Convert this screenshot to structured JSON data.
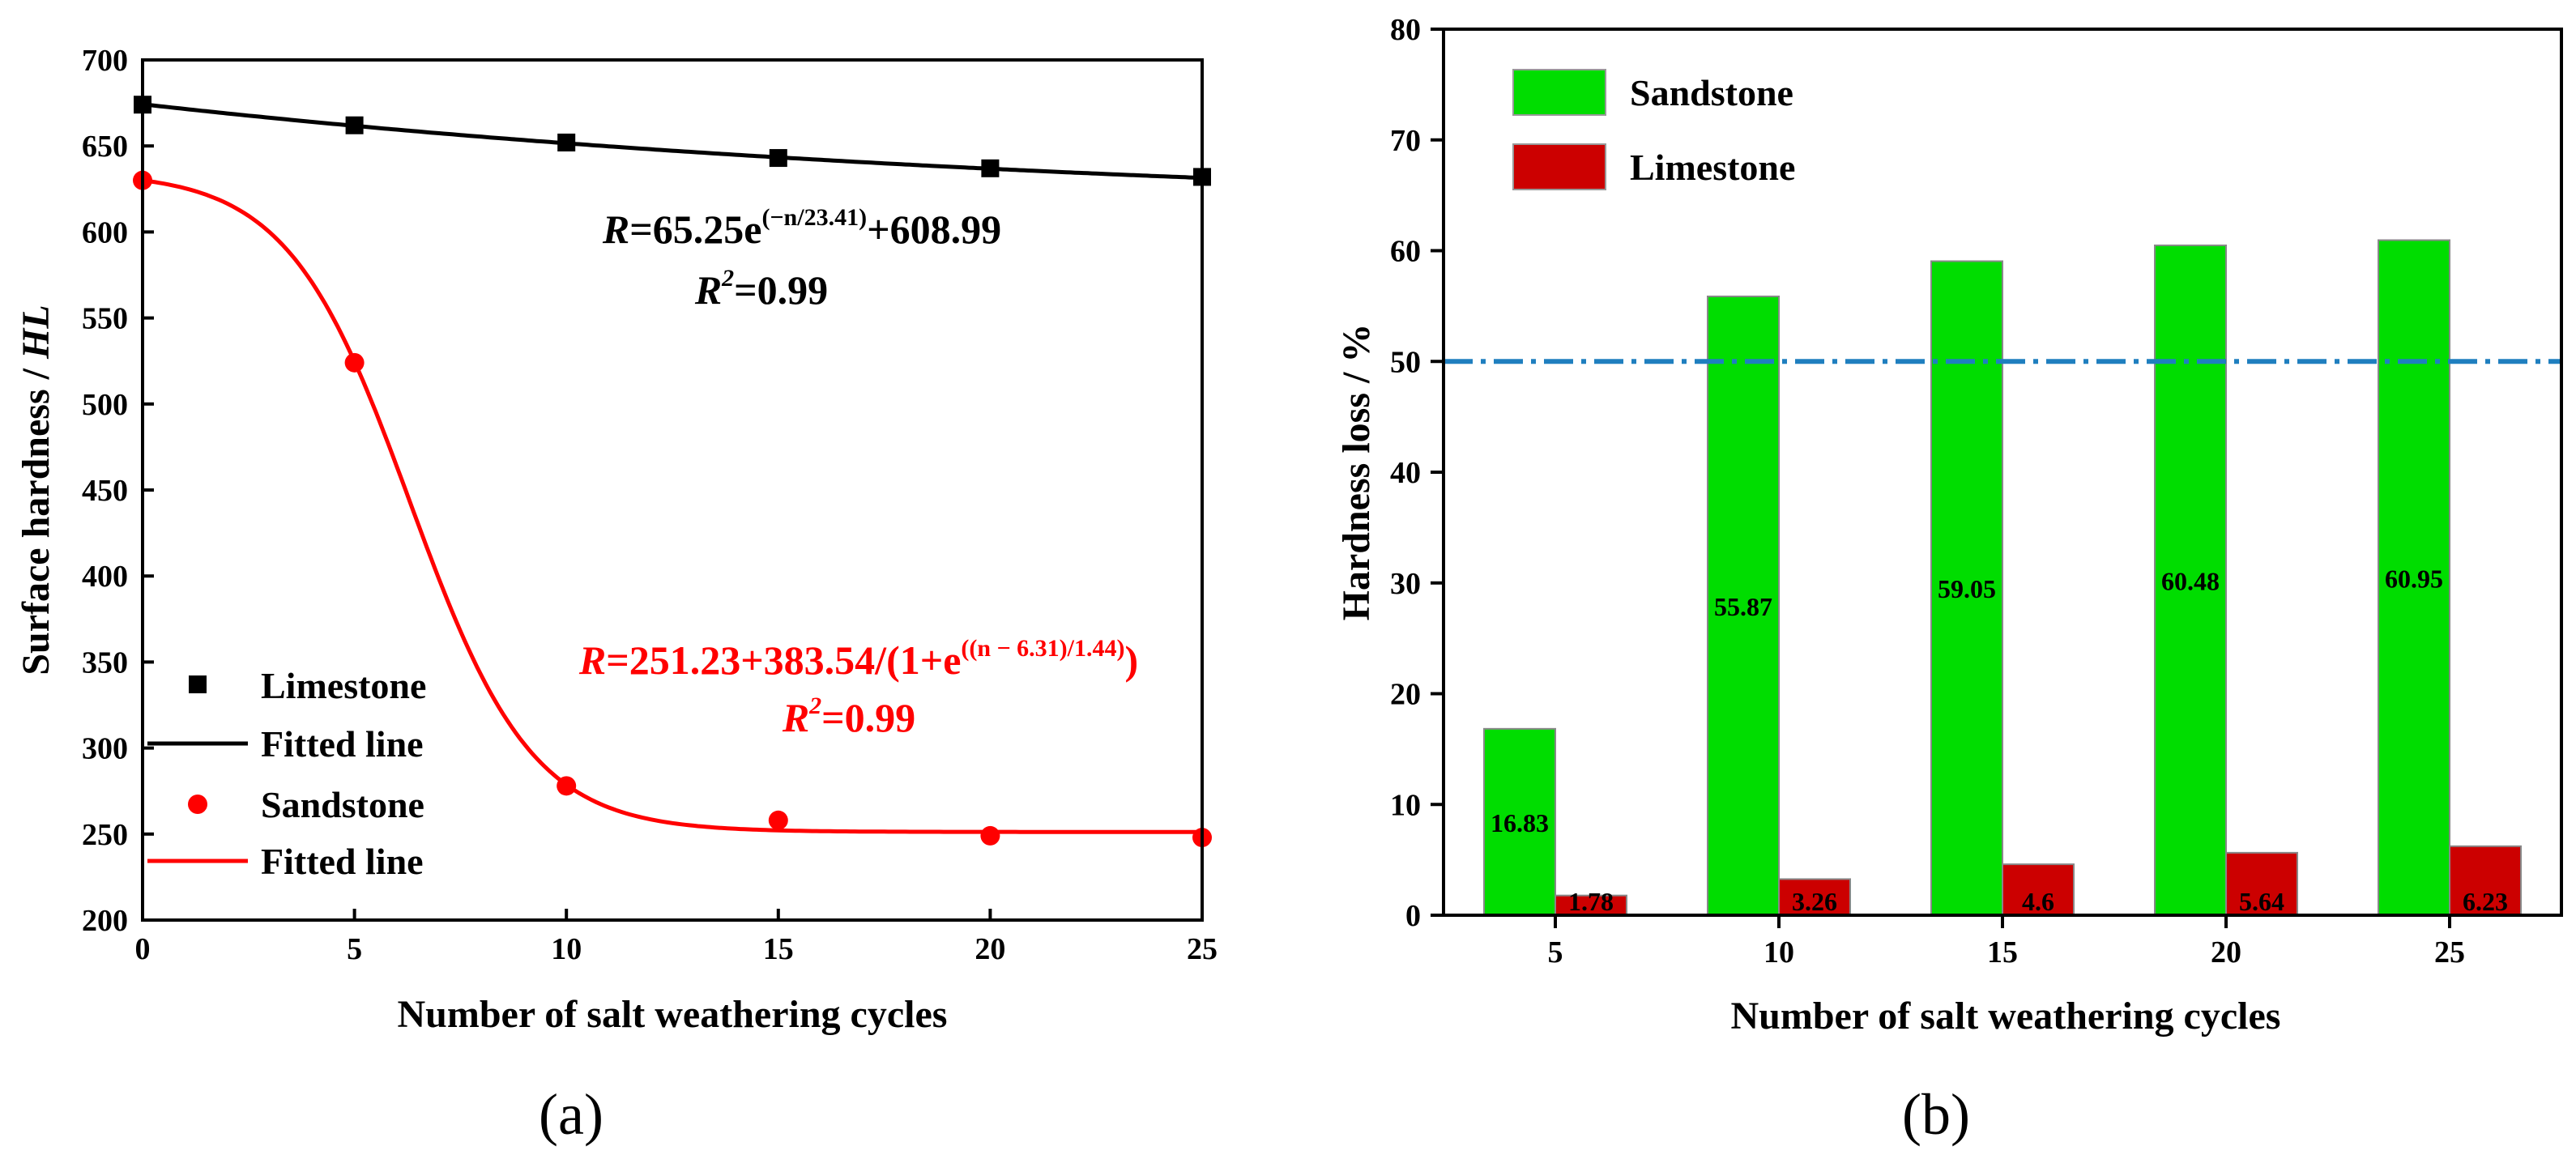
{
  "chart_data": [
    {
      "type": "line",
      "panel_label": "(a)",
      "xlabel": "Number of salt weathering cycles",
      "ylabel_main": "Surface hardness / ",
      "ylabel_unit": "HL",
      "xlim": [
        0,
        25
      ],
      "ylim": [
        200,
        700
      ],
      "xticks": [
        "0",
        "5",
        "10",
        "15",
        "20",
        "25"
      ],
      "yticks": [
        "200",
        "250",
        "300",
        "350",
        "400",
        "450",
        "500",
        "550",
        "600",
        "650",
        "700"
      ],
      "x": [
        0,
        5,
        10,
        15,
        20,
        25
      ],
      "series": [
        {
          "name": "Limestone",
          "marker": "square",
          "color": "#000000",
          "values": [
            674,
            662,
            652,
            643,
            637,
            632
          ]
        },
        {
          "name": "Sandstone",
          "marker": "circle",
          "color": "#ff0000",
          "values": [
            630,
            524,
            278,
            258,
            249,
            248
          ]
        }
      ],
      "fits": [
        {
          "name": "Fitted line",
          "color": "#000000",
          "model": "exp_decay",
          "A": 65.25,
          "t": 23.41,
          "y0": 608.99
        },
        {
          "name": "Fitted line",
          "color": "#ff0000",
          "model": "sigmoid",
          "base": 251.23,
          "amp": 383.54,
          "x0": 6.31,
          "dx": 1.44
        }
      ],
      "legend": [
        "Limestone",
        "Fitted line",
        "Sandstone",
        "Fitted line"
      ],
      "equations": {
        "black": {
          "r": "R",
          "body": "=65.25e",
          "sup": "(−n/23.41)",
          "tail": "+608.99",
          "r2_label": "R",
          "r2_sup": "2",
          "r2_value": "=0.99"
        },
        "red": {
          "r": "R",
          "body": "=251.23+383.54/(1+e",
          "sup": "((n − 6.31)/1.44)",
          "tail": ")",
          "r2_label": "R",
          "r2_sup": "2",
          "r2_value": "=0.99"
        }
      }
    },
    {
      "type": "bar",
      "panel_label": "(b)",
      "xlabel": "Number of salt weathering cycles",
      "ylabel": "Hardness loss  / %",
      "categories": [
        "5",
        "10",
        "15",
        "20",
        "25"
      ],
      "ylim": [
        0,
        80
      ],
      "yticks": [
        "0",
        "10",
        "20",
        "30",
        "40",
        "50",
        "60",
        "70",
        "80"
      ],
      "reference_line": 50,
      "series": [
        {
          "name": "Sandstone",
          "color": "#00dd00",
          "values": [
            16.83,
            55.87,
            59.05,
            60.48,
            60.95
          ],
          "labels": [
            "16.83",
            "55.87",
            "59.05",
            "60.48",
            "60.95"
          ]
        },
        {
          "name": "Limestone",
          "color": "#cc0000",
          "values": [
            1.78,
            3.26,
            4.6,
            5.64,
            6.23
          ],
          "labels": [
            "1.78",
            "3.26",
            "4.6",
            "5.64",
            "6.23"
          ]
        }
      ],
      "legend": [
        "Sandstone",
        "Limestone"
      ]
    }
  ]
}
